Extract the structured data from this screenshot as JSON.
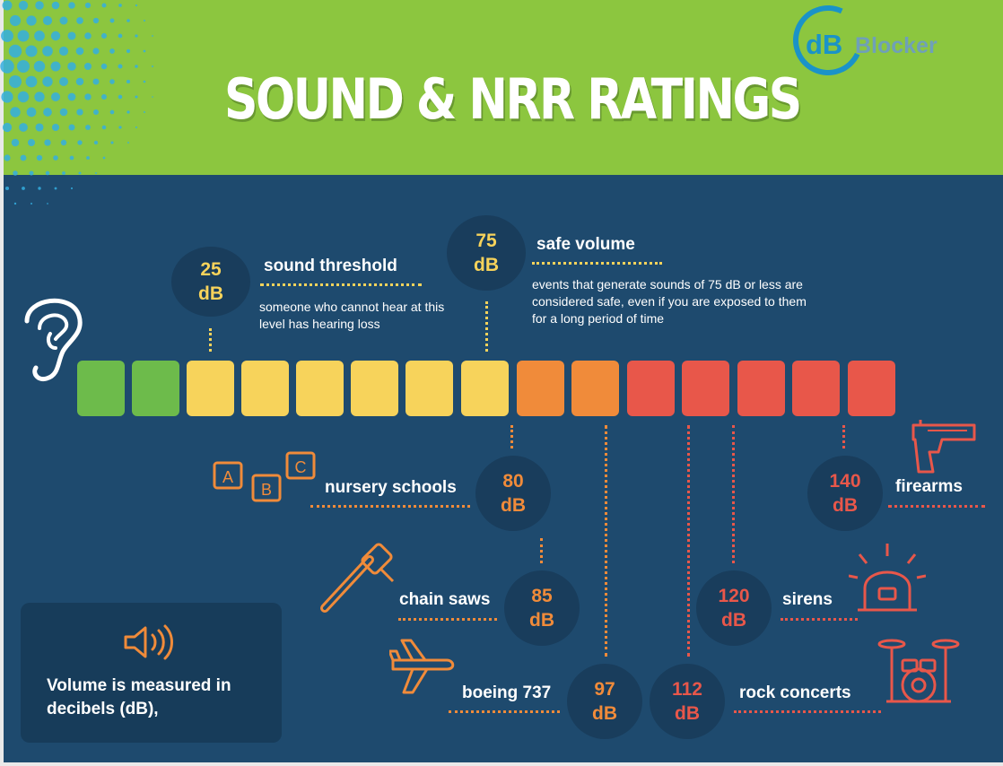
{
  "header": {
    "title": "SOUND & NRR RATINGS"
  },
  "logo": {
    "mark": "dB",
    "name": "Blocker"
  },
  "colors": {
    "header_green": "#8cc63f",
    "panel_blue": "#1e4a6e",
    "green": "#6dbb4b",
    "yellow": "#f7d35b",
    "orange": "#f08b3a",
    "red": "#e8574a"
  },
  "scale": {
    "segments": [
      "green",
      "green",
      "yellow",
      "yellow",
      "yellow",
      "yellow",
      "yellow",
      "yellow",
      "orange",
      "orange",
      "red",
      "red",
      "red",
      "red",
      "red"
    ]
  },
  "levels": [
    {
      "value": "25",
      "unit": "dB",
      "label": "sound threshold",
      "description": "someone who cannot hear at this level has hearing loss"
    },
    {
      "value": "75",
      "unit": "dB",
      "label": "safe volume",
      "description": "events that generate sounds of 75 dB or less are considered safe, even if you are exposed to them for a long period of time"
    },
    {
      "value": "80",
      "unit": "dB",
      "label": "nursery schools",
      "icon": "abc-blocks-icon"
    },
    {
      "value": "85",
      "unit": "dB",
      "label": "chain saws",
      "icon": "chainsaw-icon"
    },
    {
      "value": "97",
      "unit": "dB",
      "label": "boeing 737",
      "icon": "airplane-icon"
    },
    {
      "value": "112",
      "unit": "dB",
      "label": "rock concerts",
      "icon": "drum-kit-icon"
    },
    {
      "value": "120",
      "unit": "dB",
      "label": "sirens",
      "icon": "siren-icon"
    },
    {
      "value": "140",
      "unit": "dB",
      "label": "firearms",
      "icon": "gun-icon"
    }
  ],
  "info": {
    "icon": "speaker-icon",
    "text_line1": "Volume is measured in",
    "text_line2": "decibels (dB),"
  }
}
